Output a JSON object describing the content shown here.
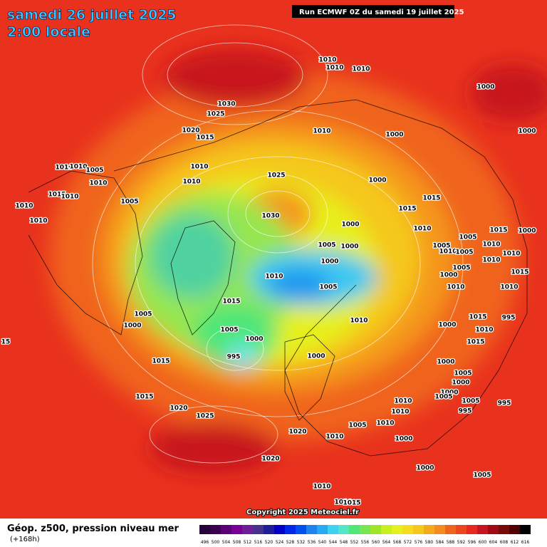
{
  "header": {
    "date": "samedi 26 juillet 2025",
    "time": "2:00 locale",
    "run": "Run ECMWF 0Z du samedi 19 juillet 2025"
  },
  "map": {
    "copyright": "Copyright 2025 Meteociel.fr",
    "isobar_labels": [
      "1010",
      "1010",
      "1010",
      "1000",
      "1030",
      "1025",
      "1020",
      "1015",
      "1010",
      "1000",
      "1000",
      "1010",
      "1010",
      "1005",
      "1010",
      "1010",
      "1010",
      "1025",
      "1000",
      "1015",
      "1010",
      "1005",
      "1015",
      "1010",
      "1015",
      "1030",
      "1010",
      "1000",
      "1010",
      "1005",
      "1015",
      "1000",
      "1005",
      "1000",
      "1005",
      "1010",
      "1005",
      "1010",
      "1010",
      "1000",
      "1010",
      "1005",
      "1010",
      "1015",
      "1000",
      "1005",
      "1010",
      "1010",
      "1015",
      "995",
      "1005",
      "1015",
      "1000",
      "1010",
      "1000",
      "1010",
      "1005",
      "1000",
      "15",
      "1015",
      "995",
      "1000",
      "1015",
      "1000",
      "1005",
      "1000",
      "1015",
      "1020",
      "1000",
      "1005",
      "1025",
      "1010",
      "1005",
      "995",
      "995",
      "1010",
      "1005",
      "1010",
      "1020",
      "1010",
      "1000",
      "1020",
      "1000",
      "1005",
      "1010",
      "1010",
      "1015"
    ]
  },
  "legend": {
    "title": "Géop. z500, pression niveau mer",
    "lead": "(+168h)",
    "scale": [
      496,
      500,
      504,
      508,
      512,
      516,
      520,
      524,
      528,
      532,
      536,
      540,
      544,
      548,
      552,
      556,
      560,
      564,
      568,
      572,
      576,
      580,
      584,
      588,
      592,
      596,
      600,
      604,
      608,
      612,
      616
    ]
  }
}
